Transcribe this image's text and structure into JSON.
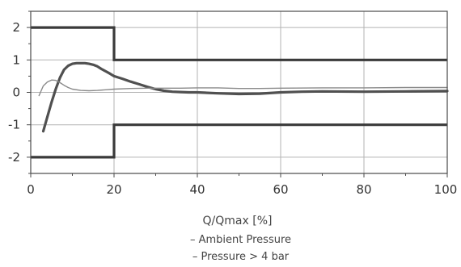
{
  "chart_data": {
    "type": "line",
    "title": "",
    "xlabel": "Q/Qmax [%]",
    "ylabel": "",
    "xlim": [
      0,
      100
    ],
    "ylim": [
      -2.5,
      2.5
    ],
    "x_ticks": [
      0,
      20,
      40,
      60,
      80,
      100
    ],
    "x_tick_labels": [
      "0",
      "20",
      "40",
      "60",
      "80",
      "100"
    ],
    "y_ticks": [
      2,
      1,
      0,
      -1,
      -2
    ],
    "y_tick_labels": [
      "2",
      "1",
      "0",
      "-1",
      "-2"
    ],
    "grid": true,
    "legend_placement": "bottom",
    "legend": [
      {
        "marker": "–",
        "label": "Ambient Pressure",
        "weight": "thick"
      },
      {
        "marker": "–",
        "label": "Pressure > 4 bar",
        "weight": "thin"
      }
    ],
    "limit_lines": [
      {
        "name": "upper-limit",
        "x": [
          0,
          20,
          20,
          100
        ],
        "y": [
          2,
          2,
          1,
          1
        ]
      },
      {
        "name": "lower-limit",
        "x": [
          0,
          20,
          20,
          100
        ],
        "y": [
          -2,
          -2,
          -1,
          -1
        ]
      }
    ],
    "series": [
      {
        "name": "Ambient Pressure",
        "weight": "thick",
        "x": [
          3,
          4,
          5,
          6,
          7,
          8,
          9,
          10,
          11,
          12,
          13,
          14,
          15,
          16,
          17,
          18,
          19,
          20,
          22,
          24,
          26,
          28,
          30,
          32,
          34,
          36,
          38,
          40,
          45,
          50,
          55,
          60,
          65,
          70,
          80,
          90,
          100
        ],
        "y": [
          -1.2,
          -0.75,
          -0.3,
          0.1,
          0.45,
          0.7,
          0.82,
          0.88,
          0.9,
          0.9,
          0.9,
          0.88,
          0.85,
          0.8,
          0.72,
          0.65,
          0.58,
          0.5,
          0.42,
          0.33,
          0.25,
          0.17,
          0.1,
          0.05,
          0.02,
          0.01,
          0.0,
          0.0,
          -0.03,
          -0.05,
          -0.04,
          0.0,
          0.02,
          0.03,
          0.02,
          0.03,
          0.04
        ]
      },
      {
        "name": "Pressure > 4 bar",
        "weight": "thin",
        "x": [
          2,
          3,
          4,
          5,
          6,
          7,
          8,
          9,
          10,
          12,
          14,
          16,
          18,
          20,
          24,
          28,
          32,
          36,
          40,
          45,
          50,
          55,
          60,
          70,
          80,
          90,
          100
        ],
        "y": [
          -0.1,
          0.2,
          0.32,
          0.38,
          0.37,
          0.3,
          0.22,
          0.15,
          0.1,
          0.06,
          0.05,
          0.06,
          0.08,
          0.1,
          0.12,
          0.13,
          0.13,
          0.13,
          0.14,
          0.14,
          0.12,
          0.12,
          0.13,
          0.14,
          0.14,
          0.15,
          0.15
        ]
      }
    ]
  }
}
